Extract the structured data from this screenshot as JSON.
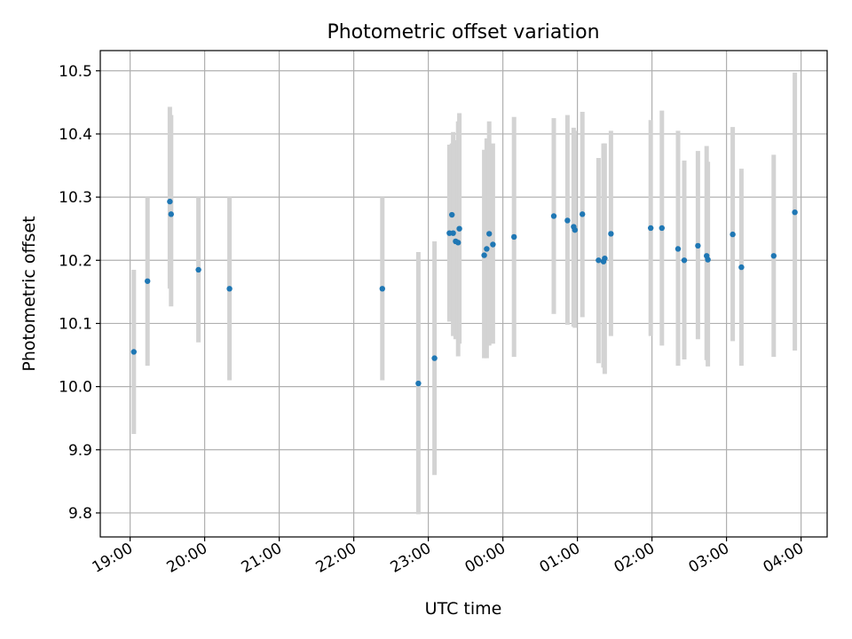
{
  "chart_data": {
    "type": "scatter",
    "title": "Photometric offset variation",
    "xlabel": "UTC time",
    "ylabel": "Photometric offset",
    "x_ticks": [
      {
        "time": "19:00",
        "label": "19:00"
      },
      {
        "time": "20:00",
        "label": "20:00"
      },
      {
        "time": "21:00",
        "label": "21:00"
      },
      {
        "time": "22:00",
        "label": "22:00"
      },
      {
        "time": "23:00",
        "label": "23:00"
      },
      {
        "time": "00:00",
        "label": "00:00"
      },
      {
        "time": "01:00",
        "label": "01:00"
      },
      {
        "time": "02:00",
        "label": "02:00"
      },
      {
        "time": "03:00",
        "label": "03:00"
      },
      {
        "time": "04:00",
        "label": "04:00"
      }
    ],
    "y_ticks": [
      {
        "value": 9.8,
        "label": "9.8"
      },
      {
        "value": 9.9,
        "label": "9.9"
      },
      {
        "value": 10.0,
        "label": "10.0"
      },
      {
        "value": 10.1,
        "label": "10.1"
      },
      {
        "value": 10.2,
        "label": "10.2"
      },
      {
        "value": 10.3,
        "label": "10.3"
      },
      {
        "value": 10.4,
        "label": "10.4"
      },
      {
        "value": 10.5,
        "label": "10.5"
      }
    ],
    "xlim": [
      "18:36",
      "04:21"
    ],
    "ylim": [
      9.762,
      10.532
    ],
    "grid": true,
    "colors": {
      "points": "#1f77b4",
      "errorbars": "#d3d3d3",
      "grid": "#b0b0b0"
    },
    "points": [
      {
        "time": "19:03",
        "y": 10.055,
        "low": 9.925,
        "high": 10.185
      },
      {
        "time": "19:14",
        "y": 10.167,
        "low": 10.033,
        "high": 10.3
      },
      {
        "time": "19:32",
        "y": 10.293,
        "low": 10.155,
        "high": 10.443
      },
      {
        "time": "19:33",
        "y": 10.273,
        "low": 10.127,
        "high": 10.43
      },
      {
        "time": "19:55",
        "y": 10.185,
        "low": 10.07,
        "high": 10.3
      },
      {
        "time": "20:20",
        "y": 10.155,
        "low": 10.01,
        "high": 10.3
      },
      {
        "time": "22:23",
        "y": 10.155,
        "low": 10.01,
        "high": 10.3
      },
      {
        "time": "22:52",
        "y": 10.005,
        "low": 9.798,
        "high": 10.213
      },
      {
        "time": "23:05",
        "y": 10.045,
        "low": 9.86,
        "high": 10.23
      },
      {
        "time": "23:17",
        "y": 10.243,
        "low": 10.103,
        "high": 10.383
      },
      {
        "time": "23:19",
        "y": 10.272,
        "low": 10.125,
        "high": 10.385
      },
      {
        "time": "23:20",
        "y": 10.243,
        "low": 10.08,
        "high": 10.403
      },
      {
        "time": "23:22",
        "y": 10.23,
        "low": 10.075,
        "high": 10.39
      },
      {
        "time": "23:24",
        "y": 10.228,
        "low": 10.048,
        "high": 10.42
      },
      {
        "time": "23:25",
        "y": 10.25,
        "low": 10.068,
        "high": 10.433
      },
      {
        "time": "23:45",
        "y": 10.208,
        "low": 10.045,
        "high": 10.375
      },
      {
        "time": "23:47",
        "y": 10.218,
        "low": 10.045,
        "high": 10.393
      },
      {
        "time": "23:49",
        "y": 10.242,
        "low": 10.065,
        "high": 10.42
      },
      {
        "time": "23:52",
        "y": 10.225,
        "low": 10.068,
        "high": 10.385
      },
      {
        "time": "00:09",
        "y": 10.237,
        "low": 10.047,
        "high": 10.427
      },
      {
        "time": "00:41",
        "y": 10.27,
        "low": 10.115,
        "high": 10.425
      },
      {
        "time": "00:52",
        "y": 10.263,
        "low": 10.098,
        "high": 10.43
      },
      {
        "time": "00:57",
        "y": 10.253,
        "low": 10.095,
        "high": 10.41
      },
      {
        "time": "00:58",
        "y": 10.248,
        "low": 10.093,
        "high": 10.405
      },
      {
        "time": "01:04",
        "y": 10.273,
        "low": 10.11,
        "high": 10.435
      },
      {
        "time": "01:17",
        "y": 10.2,
        "low": 10.037,
        "high": 10.362
      },
      {
        "time": "01:21",
        "y": 10.198,
        "low": 10.03,
        "high": 10.385
      },
      {
        "time": "01:22",
        "y": 10.203,
        "low": 10.02,
        "high": 10.385
      },
      {
        "time": "01:27",
        "y": 10.242,
        "low": 10.08,
        "high": 10.405
      },
      {
        "time": "01:59",
        "y": 10.251,
        "low": 10.08,
        "high": 10.422
      },
      {
        "time": "02:08",
        "y": 10.251,
        "low": 10.065,
        "high": 10.437
      },
      {
        "time": "02:21",
        "y": 10.218,
        "low": 10.033,
        "high": 10.405
      },
      {
        "time": "02:26",
        "y": 10.2,
        "low": 10.043,
        "high": 10.358
      },
      {
        "time": "02:37",
        "y": 10.223,
        "low": 10.075,
        "high": 10.373
      },
      {
        "time": "02:44",
        "y": 10.207,
        "low": 10.042,
        "high": 10.381
      },
      {
        "time": "02:45",
        "y": 10.201,
        "low": 10.032,
        "high": 10.356
      },
      {
        "time": "03:05",
        "y": 10.241,
        "low": 10.072,
        "high": 10.411
      },
      {
        "time": "03:12",
        "y": 10.189,
        "low": 10.033,
        "high": 10.345
      },
      {
        "time": "03:38",
        "y": 10.207,
        "low": 10.047,
        "high": 10.367
      },
      {
        "time": "03:55",
        "y": 10.276,
        "low": 10.057,
        "high": 10.497
      }
    ]
  }
}
